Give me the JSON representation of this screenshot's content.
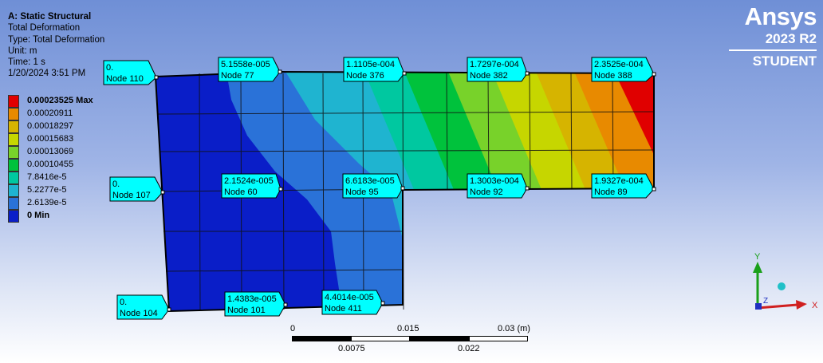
{
  "info": {
    "title": "A: Static Structural",
    "result": "Total Deformation",
    "type": "Type: Total Deformation",
    "unit": "Unit: m",
    "time": "Time: 1 s",
    "datetime": "1/20/2024 3:51 PM"
  },
  "legend": {
    "labels": [
      "0.00023525 Max",
      "0.00020911",
      "0.00018297",
      "0.00015683",
      "0.00013069",
      "0.00010455",
      "7.8416e-5",
      "5.2277e-5",
      "2.6139e-5",
      "0 Min"
    ],
    "colors": [
      "#e00000",
      "#e88a00",
      "#d6b400",
      "#c6d600",
      "#78d22a",
      "#00c23c",
      "#00c8a0",
      "#1fb4d0",
      "#2a72d8",
      "#0a1ec8"
    ]
  },
  "brand": {
    "logo": "Ansys",
    "version": "2023 R2",
    "edition": "STUDENT"
  },
  "probes": [
    {
      "value": "0.",
      "node": "Node 110"
    },
    {
      "value": "5.1558e-005",
      "node": "Node 77"
    },
    {
      "value": "1.1105e-004",
      "node": "Node 376"
    },
    {
      "value": "1.7297e-004",
      "node": "Node 382"
    },
    {
      "value": "2.3525e-004",
      "node": "Node 388"
    },
    {
      "value": "0.",
      "node": "Node 107"
    },
    {
      "value": "2.1524e-005",
      "node": "Node 60"
    },
    {
      "value": "6.6183e-005",
      "node": "Node 95"
    },
    {
      "value": "1.3003e-004",
      "node": "Node 92"
    },
    {
      "value": "1.9327e-004",
      "node": "Node 89"
    },
    {
      "value": "0.",
      "node": "Node 104"
    },
    {
      "value": "1.4383e-005",
      "node": "Node 101"
    },
    {
      "value": "4.4014e-005",
      "node": "Node 411"
    }
  ],
  "scale": {
    "top_labels": [
      "0",
      "0.015",
      "0.03 (m)"
    ],
    "bottom_labels": [
      "0.0075",
      "0.022"
    ]
  },
  "triad": {
    "x": "X",
    "y": "Y",
    "z": "Z"
  }
}
